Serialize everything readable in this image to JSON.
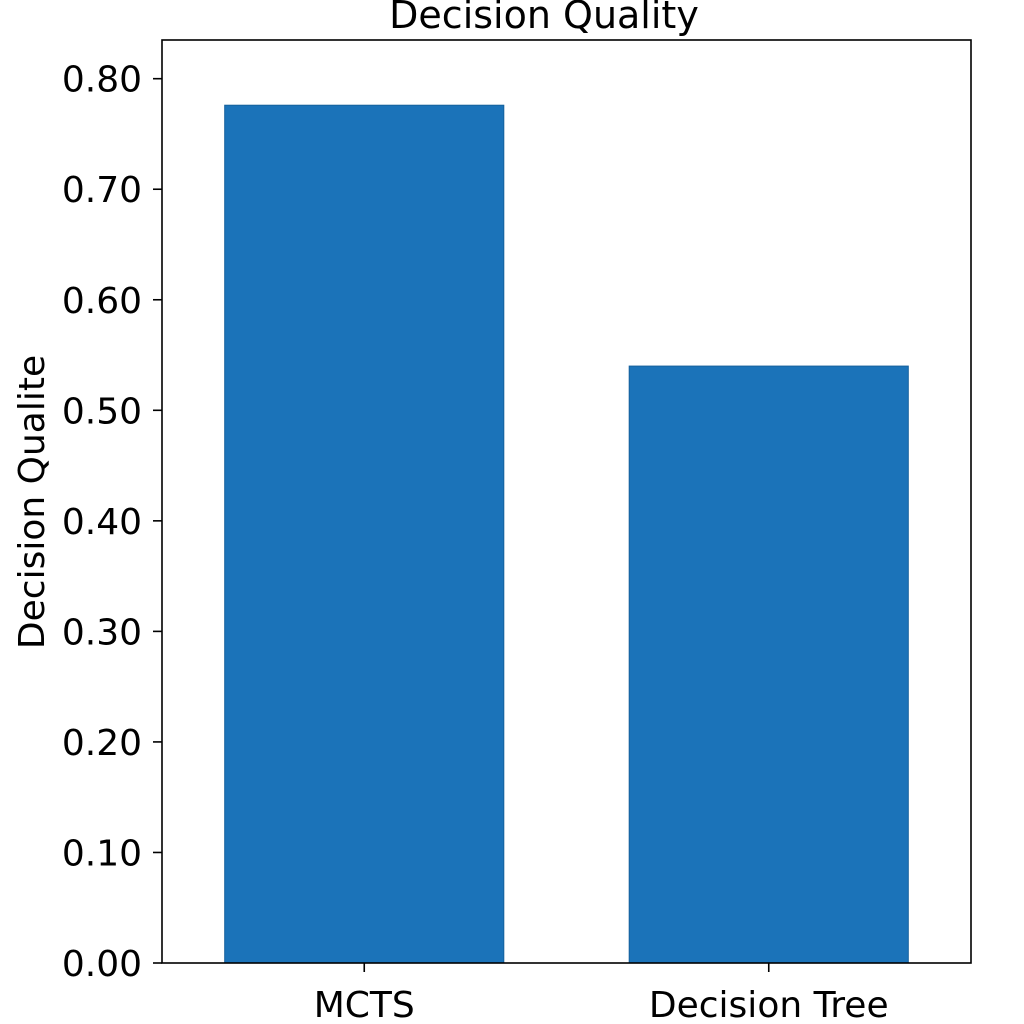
{
  "chart_data": {
    "type": "bar",
    "title": "Decision Quality",
    "xlabel": "",
    "ylabel": "Decision Qualite",
    "categories": [
      "MCTS",
      "Decision Tree"
    ],
    "values": [
      0.776,
      0.54
    ],
    "ylim": [
      0,
      0.835
    ],
    "yticks": [
      "0.00",
      "0.10",
      "0.20",
      "0.30",
      "0.40",
      "0.50",
      "0.60",
      "0.70",
      "0.80"
    ],
    "bar_color": "#1b73b9",
    "grid": false,
    "legend": "none"
  }
}
